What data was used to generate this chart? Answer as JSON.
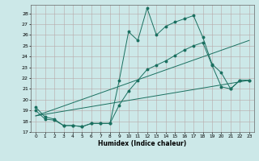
{
  "xlabel": "Humidex (Indice chaleur)",
  "bg_color": "#cce8e8",
  "grid_color_major": "#b8a8a8",
  "grid_color_minor": "#d4c4c4",
  "line_color": "#1a7060",
  "xlim": [
    -0.5,
    23.5
  ],
  "ylim": [
    17.0,
    28.8
  ],
  "yticks": [
    17,
    18,
    19,
    20,
    21,
    22,
    23,
    24,
    25,
    26,
    27,
    28
  ],
  "xticks": [
    0,
    1,
    2,
    3,
    4,
    5,
    6,
    7,
    8,
    9,
    10,
    11,
    12,
    13,
    14,
    15,
    16,
    17,
    18,
    19,
    20,
    21,
    22,
    23
  ],
  "line1_x": [
    0,
    1,
    2,
    3,
    4,
    5,
    6,
    7,
    8,
    9,
    10,
    11,
    12,
    13,
    14,
    15,
    16,
    17,
    18,
    19,
    20,
    21,
    22,
    23
  ],
  "line1_y": [
    19.3,
    18.4,
    18.2,
    17.6,
    17.6,
    17.5,
    17.8,
    17.8,
    17.8,
    21.8,
    26.3,
    25.5,
    28.5,
    26.0,
    26.8,
    27.2,
    27.5,
    27.8,
    25.8,
    23.3,
    22.5,
    21.0,
    21.8,
    21.8
  ],
  "line2_x": [
    0,
    1,
    2,
    3,
    4,
    5,
    6,
    7,
    8,
    9,
    10,
    11,
    12,
    13,
    14,
    15,
    16,
    17,
    18,
    19,
    20,
    21,
    22,
    23
  ],
  "line2_y": [
    19.0,
    18.2,
    18.1,
    17.6,
    17.6,
    17.5,
    17.8,
    17.8,
    17.8,
    19.5,
    20.8,
    21.8,
    22.8,
    23.2,
    23.6,
    24.1,
    24.6,
    25.0,
    25.3,
    23.2,
    21.2,
    21.0,
    21.8,
    21.8
  ],
  "line3_x": [
    0,
    23
  ],
  "line3_y": [
    18.5,
    25.5
  ],
  "line4_x": [
    0,
    23
  ],
  "line4_y": [
    18.5,
    21.8
  ]
}
